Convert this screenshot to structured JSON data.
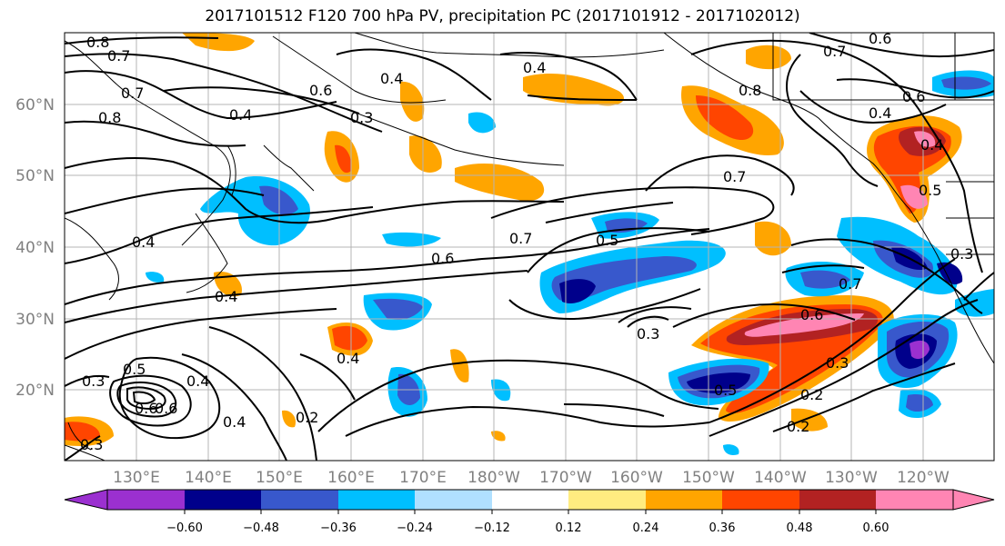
{
  "title": "2017101512 F120 700 hPa PV, precipitation PC (2017101912 - 2017102012)",
  "lat_labels": [
    "60°N",
    "50°N",
    "40°N",
    "30°N",
    "20°N"
  ],
  "lon_labels": [
    "130°E",
    "140°E",
    "150°E",
    "160°E",
    "170°E",
    "180°W",
    "170°W",
    "160°W",
    "150°W",
    "140°W",
    "130°W",
    "120°W"
  ],
  "colorbar": {
    "colors": [
      "#9b30d0",
      "#00008b",
      "#3858cc",
      "#00bfff",
      "#b0e0ff",
      "#ffffff",
      "#ffec80",
      "#ffa500",
      "#ff4500",
      "#b22222",
      "#ff85b3"
    ],
    "tick_labels": [
      "−0.60",
      "−0.48",
      "−0.36",
      "−0.24",
      "−0.12",
      "0.12",
      "0.24",
      "0.36",
      "0.48",
      "0.60"
    ]
  },
  "contour_labels": [
    "0.8",
    "0.7",
    "0.8",
    "0.7",
    "0.4",
    "0.6",
    "0.3",
    "0.4",
    "0.4",
    "0.6",
    "0.4",
    "0.5",
    "0.6",
    "0.4",
    "0.3",
    "0.4",
    "0.2",
    "0.4",
    "0.3",
    "0.7",
    "0.5",
    "0.6",
    "0.3",
    "0.4",
    "0.8",
    "0.7",
    "0.6",
    "0.4",
    "0.4",
    "0.5",
    "0.7",
    "0.3",
    "0.6",
    "0.3",
    "0.7",
    "0.2",
    "0.5",
    "0.2",
    "0.6"
  ],
  "icons": {
    "colorbar_min_arrow": "triangle-left",
    "colorbar_max_arrow": "triangle-right"
  }
}
